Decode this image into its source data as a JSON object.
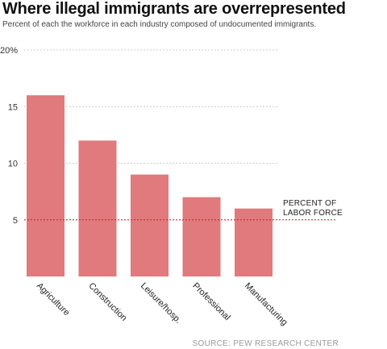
{
  "header": {
    "title": "Where illegal immigrants are overrepresented",
    "subtitle": "Percent of each the workforce in each industry composed of undocumented immigrants."
  },
  "footer": {
    "source": "SOURCE: PEW RESEARCH CENTER"
  },
  "colors": {
    "bar": "#e07a7c",
    "grid": "#cccccc",
    "reference_line": "#c0202a"
  },
  "chart_data": {
    "type": "bar",
    "categories": [
      "Agriculture",
      "Construction",
      "Leisure/hosp.",
      "Professional",
      "Manufacturing"
    ],
    "values": [
      16,
      12,
      9,
      7,
      6
    ],
    "ylim": [
      0,
      20
    ],
    "yticks": [
      5,
      10,
      15,
      20
    ],
    "ytick_labels": [
      "5",
      "10",
      "15",
      "20%"
    ],
    "grid": true,
    "reference_line": {
      "value": 5,
      "label_lines": [
        "PERCENT OF",
        "LABOR FORCE"
      ]
    }
  }
}
